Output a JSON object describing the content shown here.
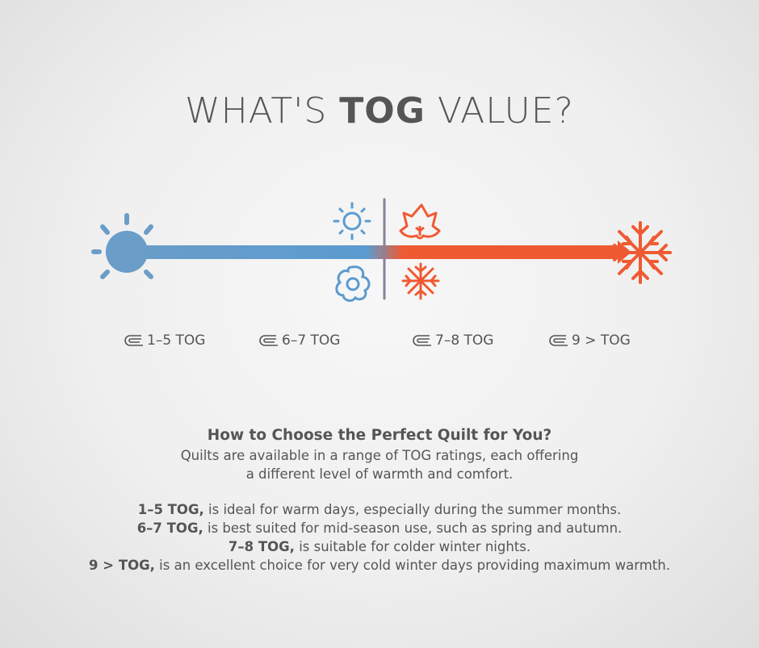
{
  "title": {
    "prefix": "WHAT'S ",
    "bold": "TOG",
    "suffix": " VALUE?"
  },
  "colors": {
    "cool": "#5b9bd0",
    "warm": "#f05a33",
    "divider": "#8a8296",
    "text": "#555555"
  },
  "icons": [
    "sun-icon",
    "small-sun-icon",
    "flower-icon",
    "maple-leaf-icon",
    "small-snowflake-icon",
    "snowflake-icon",
    "quilt-icon"
  ],
  "scale_labels": [
    "1–5 TOG",
    "6–7 TOG",
    "7–8 TOG",
    "9 > TOG"
  ],
  "heading": "How to Choose the Perfect Quilt for You?",
  "intro": [
    "Quilts are available in a range of TOG ratings, each offering",
    "a different level of warmth and comfort."
  ],
  "list": [
    {
      "tog": "1–5 TOG,",
      "text": " is ideal for warm days, especially during the summer months."
    },
    {
      "tog": "6–7 TOG,",
      "text": " is best suited for mid-season use, such as spring and autumn."
    },
    {
      "tog": "7–8 TOG,",
      "text": " is suitable for colder winter nights."
    },
    {
      "tog": "9 > TOG,",
      "text": " is an excellent choice for very cold winter days providing maximum warmth."
    }
  ]
}
